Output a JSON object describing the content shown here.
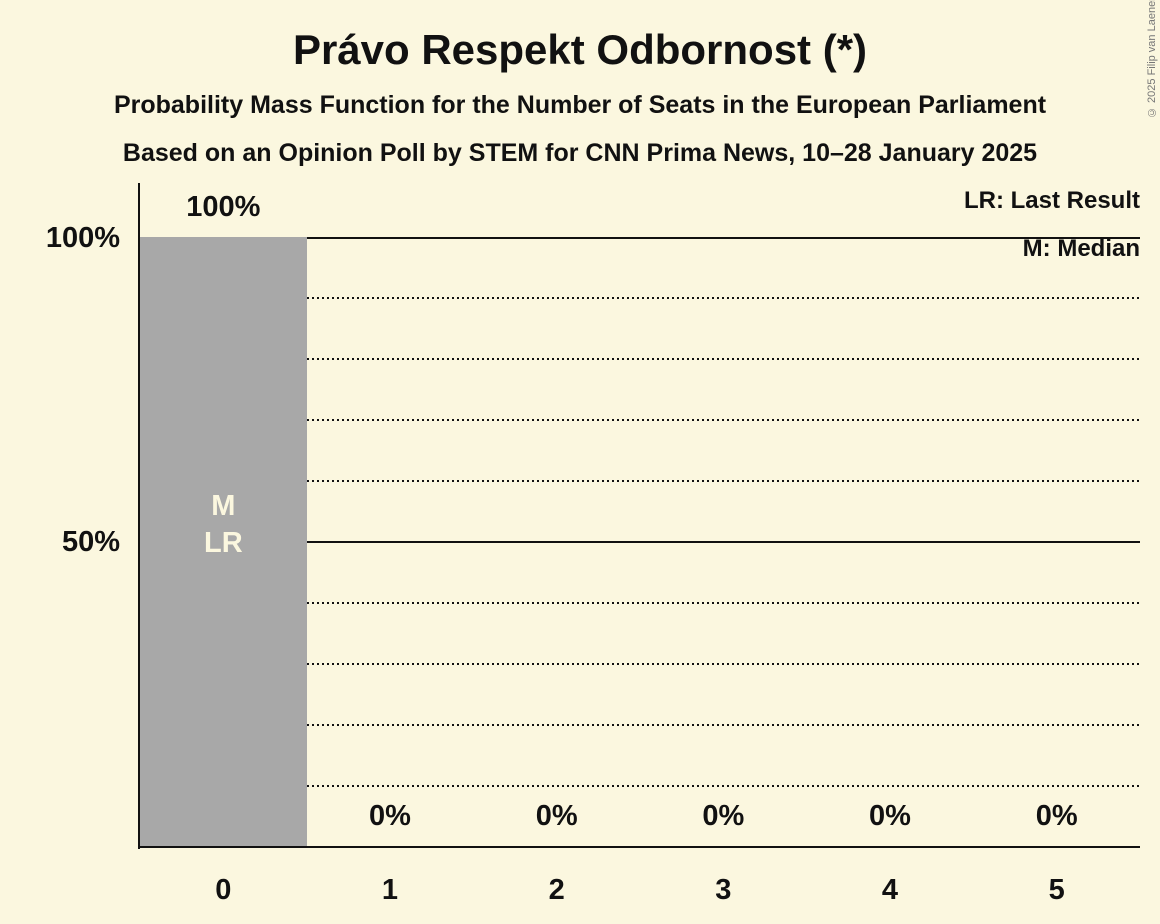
{
  "header": {
    "title": "Právo Respekt Odbornost (*)",
    "subtitle1": "Probability Mass Function for the Number of Seats in the European Parliament",
    "subtitle2": "Based on an Opinion Poll by STEM for CNN Prima News, 10–28 January 2025"
  },
  "legend": {
    "last_result": "LR: Last Result",
    "median": "M: Median"
  },
  "copyright": "© 2025 Filip van Laenen",
  "colors": {
    "background": "#fbf7df",
    "bar": "#a8a8a8",
    "text": "#111111",
    "bar_annotation_text": "#fbf7df",
    "copyright_text": "#777777"
  },
  "chart_data": {
    "type": "bar",
    "title": "Právo Respekt Odbornost (*)",
    "subtitle": "Probability Mass Function for the Number of Seats in the European Parliament",
    "source": "Based on an Opinion Poll by STEM for CNN Prima News, 10–28 January 2025",
    "categories": [
      "0",
      "1",
      "2",
      "3",
      "4",
      "5"
    ],
    "values": [
      100,
      0,
      0,
      0,
      0,
      0
    ],
    "bar_value_labels": [
      "100%",
      "0%",
      "0%",
      "0%",
      "0%",
      "0%"
    ],
    "ylim": [
      0,
      100
    ],
    "yticks": [
      {
        "value": 100,
        "label": "100%"
      },
      {
        "value": 50,
        "label": "50%"
      }
    ],
    "solid_gridlines": [
      100,
      50
    ],
    "dotted_gridlines": [
      90,
      80,
      70,
      60,
      40,
      30,
      20,
      10
    ],
    "bar_annotations": [
      {
        "category": "0",
        "lines": [
          "M",
          "LR"
        ]
      }
    ],
    "legend_entries": [
      "LR: Last Result",
      "M: Median"
    ],
    "legend_position": "top-right",
    "grid": "horizontal, dotted every 10%, solid at 50% and 100%",
    "median_seats": 0,
    "last_result_seats": 0
  }
}
